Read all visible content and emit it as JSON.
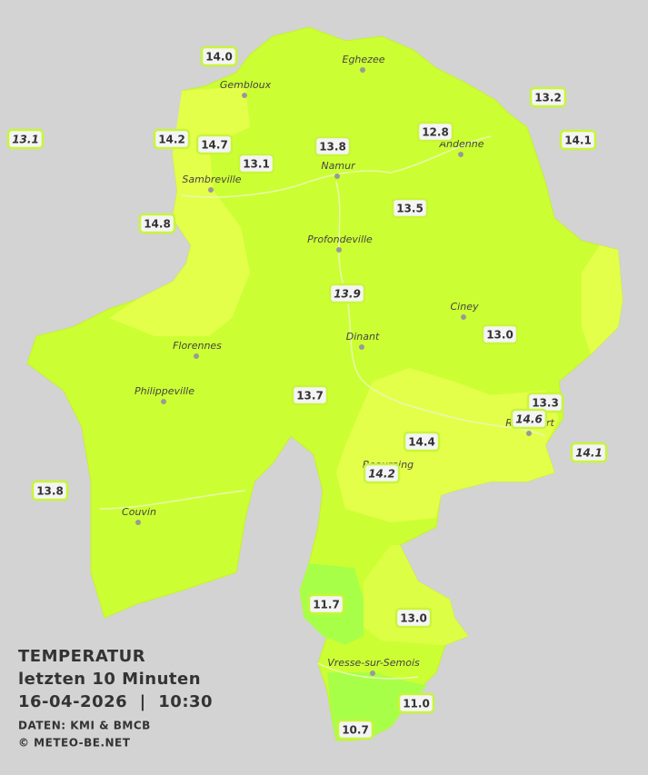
{
  "title": [
    "TEMPERATUR",
    "letzten 10 Minuten",
    "16-04-2026  |  10:30"
  ],
  "credits": [
    "DATEN: KMI & BMCB",
    "© METEO-BE.NET"
  ],
  "towns": [
    "Eghezee",
    "Gembloux",
    "Andenne",
    "Namur",
    "Sambreville",
    "Profondeville",
    "Ciney",
    "Dinant",
    "Florennes",
    "Philippeville",
    "Rochefort",
    "Beauraing",
    "Couvin",
    "Vresse-sur-Semois"
  ],
  "stations": [
    "14.0",
    "13.2",
    "13.1",
    "14.2",
    "14.7",
    "13.1",
    "13.8",
    "12.8",
    "14.1",
    "13.5",
    "14.8",
    "13.9",
    "13.0",
    "13.7",
    "13.3",
    "14.6",
    "14.4",
    "14.1",
    "14.2",
    "13.8",
    "11.7",
    "13.0",
    "11.0",
    "10.7"
  ]
}
